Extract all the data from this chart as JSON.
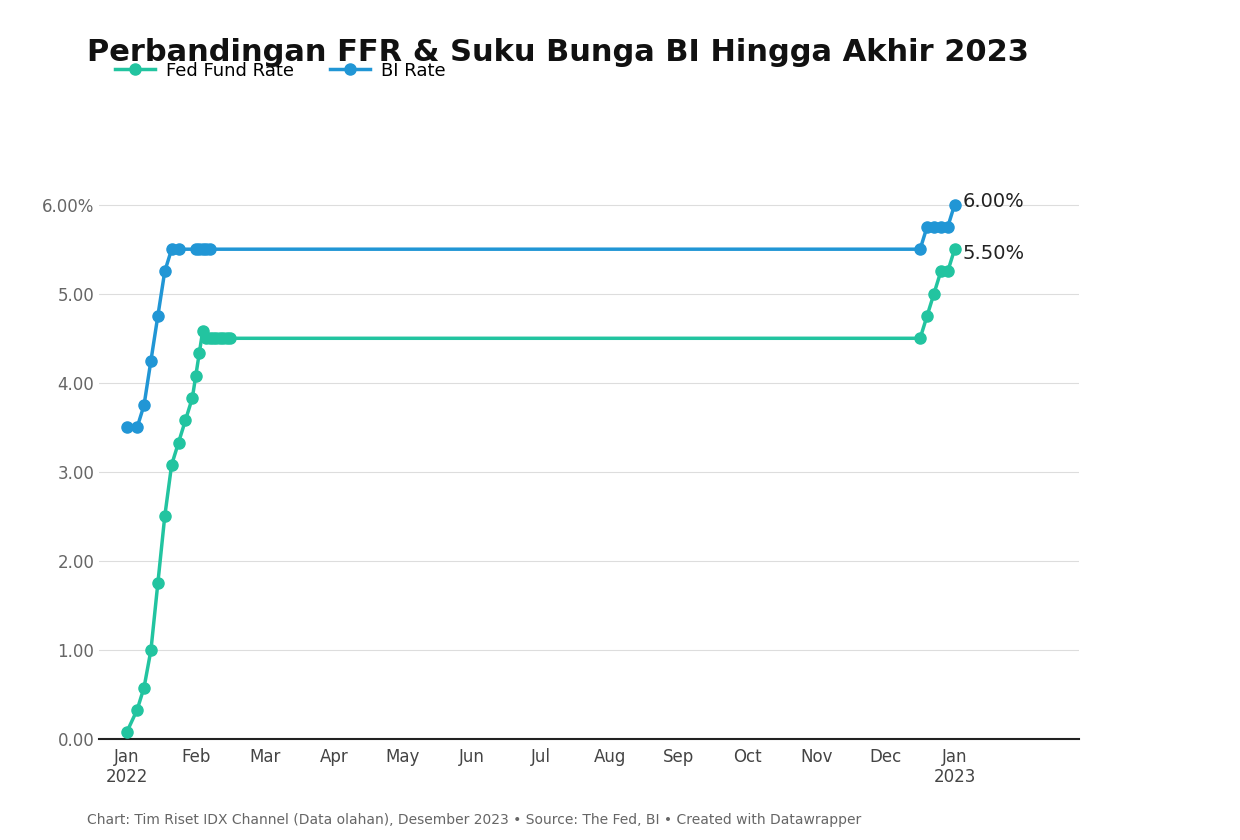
{
  "title": "Perbandingan FFR & Suku Bunga BI Hingga Akhir 2023",
  "legend_ffr": "Fed Fund Rate",
  "legend_bi": "BI Rate",
  "ffr_color": "#22c4a0",
  "bi_color": "#2196d5",
  "ffr_data_x": [
    0.0,
    0.15,
    0.25,
    0.35,
    0.45,
    0.55,
    0.65,
    0.75,
    0.85,
    0.95,
    1.0,
    1.05,
    1.1,
    1.15,
    1.2,
    1.25,
    1.3,
    1.35,
    1.4,
    1.45,
    1.5,
    11.5,
    11.6,
    11.7,
    11.8,
    11.9,
    12.0
  ],
  "ffr_data_y": [
    0.08,
    0.33,
    0.58,
    1.0,
    1.75,
    2.5,
    3.08,
    3.33,
    3.58,
    3.83,
    4.08,
    4.33,
    4.58,
    4.5,
    4.5,
    4.5,
    4.5,
    4.5,
    4.5,
    4.5,
    4.5,
    4.5,
    4.75,
    5.0,
    5.25,
    5.25,
    5.5
  ],
  "bi_data_x": [
    0.0,
    0.15,
    0.25,
    0.35,
    0.45,
    0.55,
    0.65,
    0.75,
    1.0,
    1.05,
    1.1,
    1.15,
    1.2,
    11.5,
    11.6,
    11.7,
    11.8,
    11.9,
    12.0
  ],
  "bi_data_y": [
    3.5,
    3.5,
    3.75,
    4.25,
    4.75,
    5.25,
    5.5,
    5.5,
    5.5,
    5.5,
    5.5,
    5.5,
    5.5,
    5.5,
    5.75,
    5.75,
    5.75,
    5.75,
    6.0
  ],
  "ffr_label": "5.50%",
  "bi_label": "6.00%",
  "ylim": [
    0.0,
    6.6
  ],
  "yticks": [
    0.0,
    1.0,
    2.0,
    3.0,
    4.0,
    5.0,
    6.0
  ],
  "ytick_labels": [
    "0.00",
    "1.00",
    "2.00",
    "3.00",
    "4.00",
    "5.00",
    "6.00%"
  ],
  "xtick_positions": [
    0,
    1,
    2,
    3,
    4,
    5,
    6,
    7,
    8,
    9,
    10,
    11,
    12
  ],
  "xtick_labels": [
    "Jan\n2022",
    "Feb",
    "Mar",
    "Apr",
    "May",
    "Jun",
    "Jul",
    "Aug",
    "Sep",
    "Oct",
    "Nov",
    "Dec",
    "Jan\n2023"
  ],
  "footnote": "Chart: Tim Riset IDX Channel (Data olahan), Desember 2023 • Source: The Fed, BI • Created with Datawrapper",
  "background_color": "#ffffff",
  "grid_color": "#dddddd",
  "marker_size": 8,
  "linewidth": 2.5
}
